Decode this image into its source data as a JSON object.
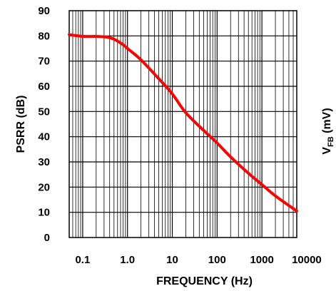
{
  "chart_data": {
    "type": "line",
    "xscale": "log",
    "xlim": [
      0.05,
      6000
    ],
    "ylim": [
      0,
      90
    ],
    "grid": true,
    "xlabel": "FREQUENCY (Hz)",
    "ylabel": "PSRR (dB)",
    "right_label": {
      "main": "V",
      "sub": "FB",
      "unit": " (mV)"
    },
    "x_ticks": [
      {
        "value": 0.1,
        "label": "0.1"
      },
      {
        "value": 1,
        "label": "1.0"
      },
      {
        "value": 10,
        "label": "10"
      },
      {
        "value": 100,
        "label": "100"
      },
      {
        "value": 1000,
        "label": "1000"
      },
      {
        "value": 10000,
        "label": "10000"
      }
    ],
    "y_ticks": [
      {
        "value": 0,
        "label": "0"
      },
      {
        "value": 10,
        "label": "10"
      },
      {
        "value": 20,
        "label": "20"
      },
      {
        "value": 30,
        "label": "30"
      },
      {
        "value": 40,
        "label": "40"
      },
      {
        "value": 50,
        "label": "50"
      },
      {
        "value": 60,
        "label": "60"
      },
      {
        "value": 70,
        "label": "70"
      },
      {
        "value": 80,
        "label": "80"
      },
      {
        "value": 90,
        "label": "90"
      }
    ],
    "series": [
      {
        "color": "#ff0000",
        "points": [
          [
            0.05,
            80.5
          ],
          [
            0.1,
            79.8
          ],
          [
            0.2,
            79.8
          ],
          [
            0.35,
            79.5
          ],
          [
            0.5,
            78.7
          ],
          [
            0.8,
            76.5
          ],
          [
            1.0,
            75.0
          ],
          [
            2.0,
            70.5
          ],
          [
            5.0,
            63.0
          ],
          [
            10,
            57.0
          ],
          [
            20,
            49.5
          ],
          [
            50,
            42.5
          ],
          [
            100,
            37.5
          ],
          [
            200,
            32.0
          ],
          [
            500,
            25.5
          ],
          [
            1000,
            21.0
          ],
          [
            2000,
            16.5
          ],
          [
            6000,
            10.5
          ]
        ]
      }
    ]
  }
}
